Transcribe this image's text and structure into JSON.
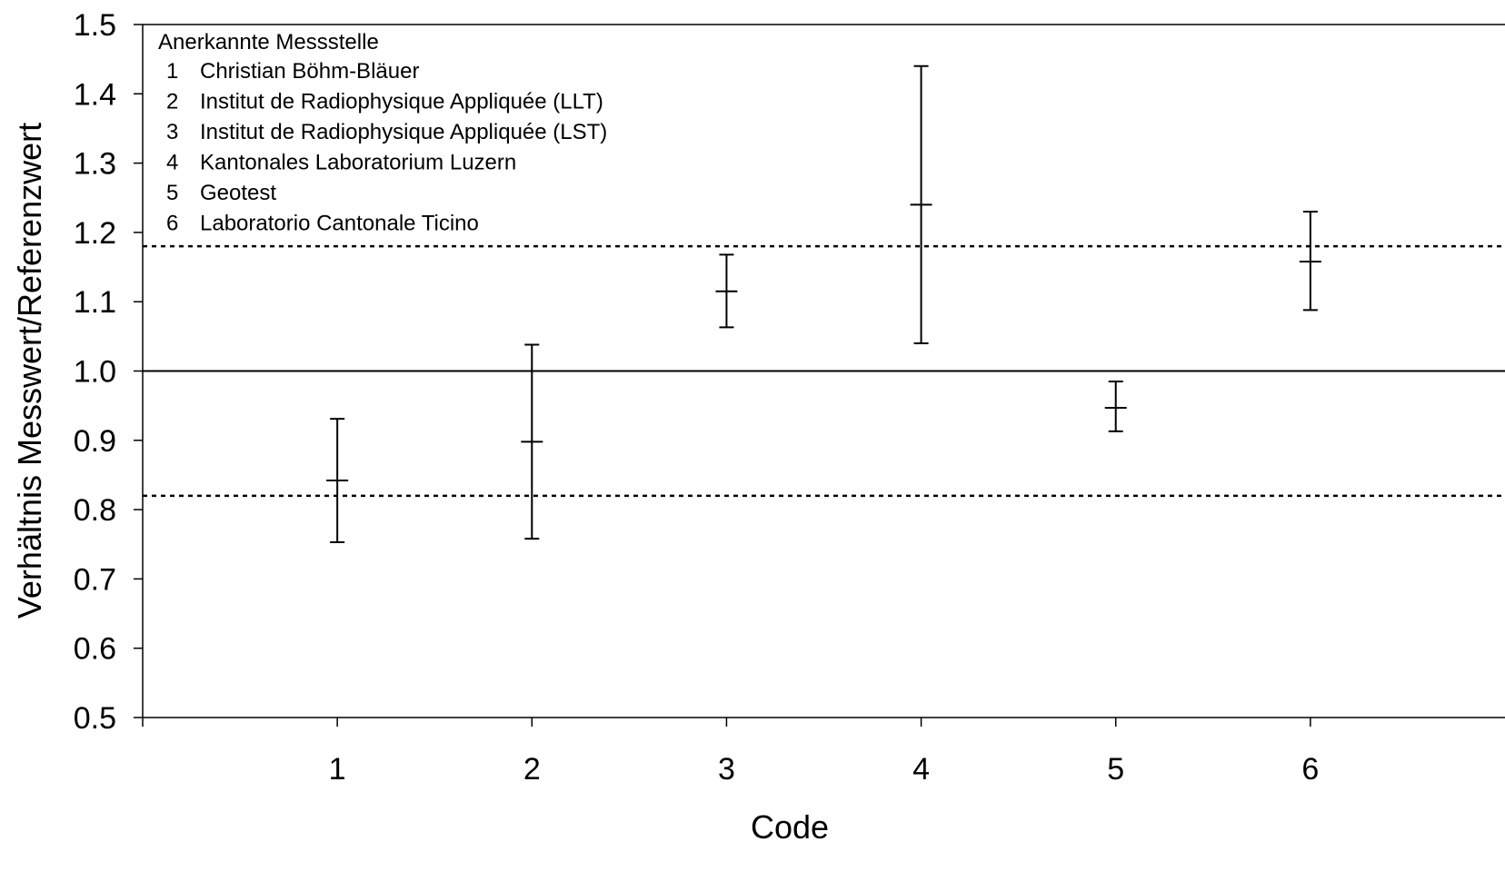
{
  "chart_data": {
    "type": "scatter",
    "title": "",
    "xlabel": "Code",
    "ylabel": "Verhältnis Messwert/Referenzwert",
    "xlim": [
      0,
      7
    ],
    "ylim": [
      0.5,
      1.5
    ],
    "x_ticks": [
      "1",
      "2",
      "3",
      "4",
      "5",
      "6"
    ],
    "y_ticks": [
      "0.5",
      "0.6",
      "0.7",
      "0.8",
      "0.9",
      "1.0",
      "1.1",
      "1.2",
      "1.3",
      "1.4",
      "1.5"
    ],
    "grid": false,
    "reference_lines": [
      {
        "y": 1.0,
        "style": "solid"
      },
      {
        "y": 1.18,
        "style": "dotted"
      },
      {
        "y": 0.82,
        "style": "dotted"
      }
    ],
    "points": [
      {
        "x": 1,
        "y": 0.842,
        "y_low": 0.753,
        "y_high": 0.931
      },
      {
        "x": 2,
        "y": 0.898,
        "y_low": 0.758,
        "y_high": 1.038
      },
      {
        "x": 3,
        "y": 1.115,
        "y_low": 1.063,
        "y_high": 1.168
      },
      {
        "x": 4,
        "y": 1.24,
        "y_low": 1.04,
        "y_high": 1.44
      },
      {
        "x": 5,
        "y": 0.947,
        "y_low": 0.913,
        "y_high": 0.985
      },
      {
        "x": 6,
        "y": 1.158,
        "y_low": 1.088,
        "y_high": 1.23
      }
    ],
    "legend": {
      "title": "Anerkannte  Messstelle",
      "position": "top-left",
      "entries": [
        {
          "code": "1",
          "label": "Christian Böhm-Bläuer"
        },
        {
          "code": "2",
          "label": "Institut de Radiophysique Appliquée (LLT)"
        },
        {
          "code": "3",
          "label": "Institut de Radiophysique Appliquée (LST)"
        },
        {
          "code": "4",
          "label": "Kantonales Laboratorium Luzern"
        },
        {
          "code": "5",
          "label": "Geotest"
        },
        {
          "code": "6",
          "label": "Laboratorio Cantonale Ticino"
        }
      ]
    }
  }
}
